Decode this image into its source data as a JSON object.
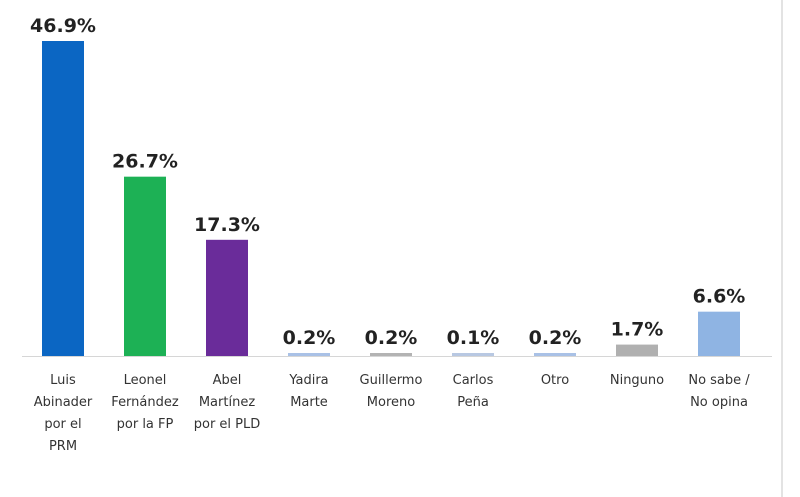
{
  "chart_data": {
    "type": "bar",
    "categories": [
      "Luis Abinader por el PRM",
      "Leonel Fernández por la FP",
      "Abel Martínez por el PLD",
      "Yadira Marte",
      "Guillermo Moreno",
      "Carlos Peña",
      "Otro",
      "Ninguno",
      "No sabe / No opina"
    ],
    "category_lines": [
      [
        "Luis",
        "Abinader",
        "por el",
        "PRM"
      ],
      [
        "Leonel",
        "Fernández",
        "por la FP"
      ],
      [
        "Abel",
        "Martínez",
        "por el PLD"
      ],
      [
        "Yadira",
        "Marte"
      ],
      [
        "Guillermo",
        "Moreno"
      ],
      [
        "Carlos",
        "Peña"
      ],
      [
        "Otro"
      ],
      [
        "Ninguno"
      ],
      [
        "No sabe /",
        "No opina"
      ]
    ],
    "values": [
      46.9,
      26.7,
      17.3,
      0.2,
      0.2,
      0.1,
      0.2,
      1.7,
      6.6
    ],
    "labels": [
      "46.9%",
      "26.7%",
      "17.3%",
      "0.2%",
      "0.2%",
      "0.1%",
      "0.2%",
      "1.7%",
      "6.6%"
    ],
    "colors": [
      "#0b66c3",
      "#1db155",
      "#6a2c9a",
      "#a9c1e6",
      "#b3b3b3",
      "#b8c8e2",
      "#a9c1e6",
      "#b0b0b0",
      "#8fb4e3"
    ],
    "ylim": [
      0,
      46.9
    ],
    "grid": false,
    "legend": "none"
  }
}
